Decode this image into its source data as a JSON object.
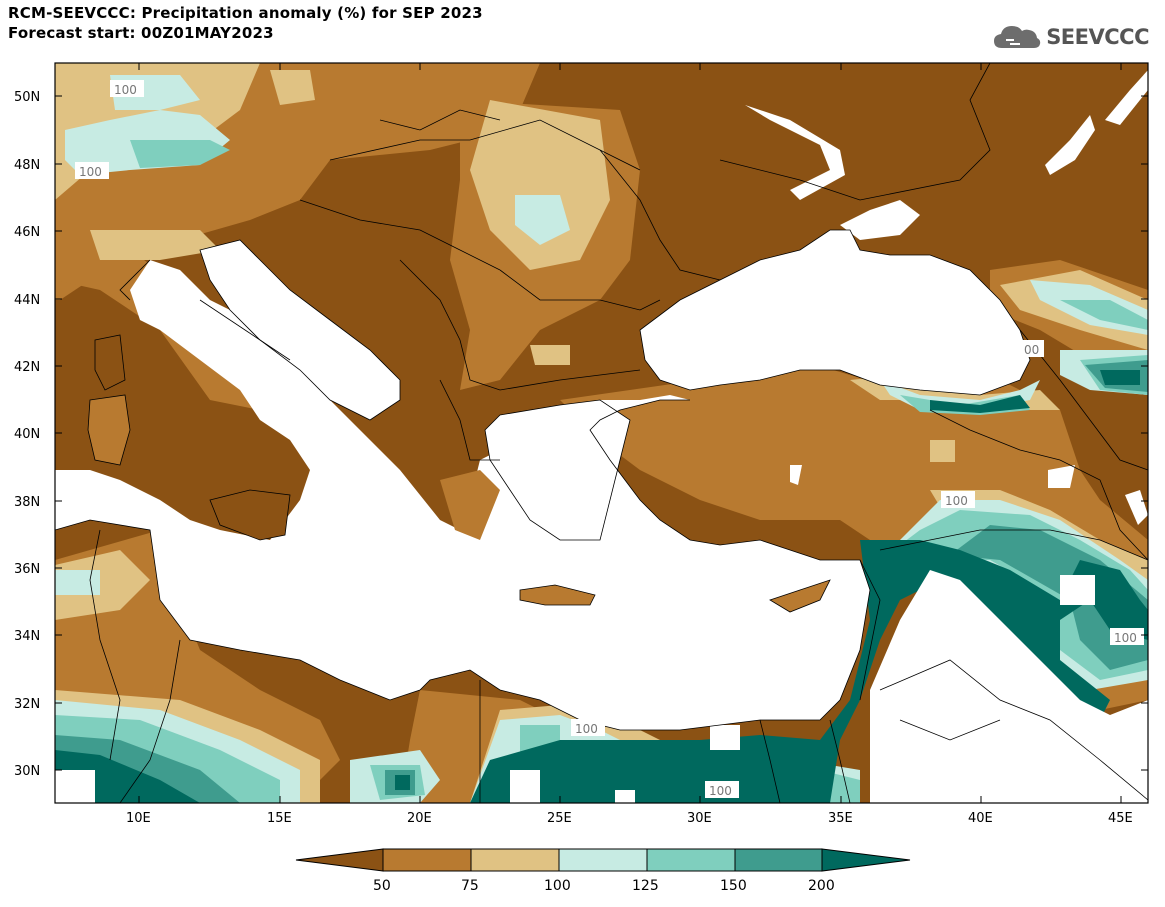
{
  "title": {
    "line1": "RCM-SEEVCCC: Precipitation anomaly (%) for SEP 2023",
    "line2": "Forecast start: 00Z01MAY2023"
  },
  "logo": {
    "icon": "cloud-icon",
    "text": "SEEVCCC"
  },
  "map": {
    "lat_ticks": [
      "50N",
      "48N",
      "46N",
      "44N",
      "42N",
      "40N",
      "38N",
      "36N",
      "34N",
      "32N",
      "30N"
    ],
    "lon_ticks": [
      "10E",
      "15E",
      "20E",
      "25E",
      "30E",
      "35E",
      "40E",
      "45E"
    ],
    "lat_range": [
      29,
      51
    ],
    "lon_range": [
      7,
      46
    ],
    "contour_labels": [
      "100",
      "100",
      "100",
      "100",
      "100",
      "100",
      "100",
      "00"
    ]
  },
  "colorbar": {
    "labels": [
      "50",
      "75",
      "100",
      "125",
      "150",
      "200"
    ],
    "colors": [
      "#8b5214",
      "#b87a30",
      "#e0c283",
      "#c7ebe3",
      "#7fcfbe",
      "#3f9c8e",
      "#00695e"
    ]
  }
}
